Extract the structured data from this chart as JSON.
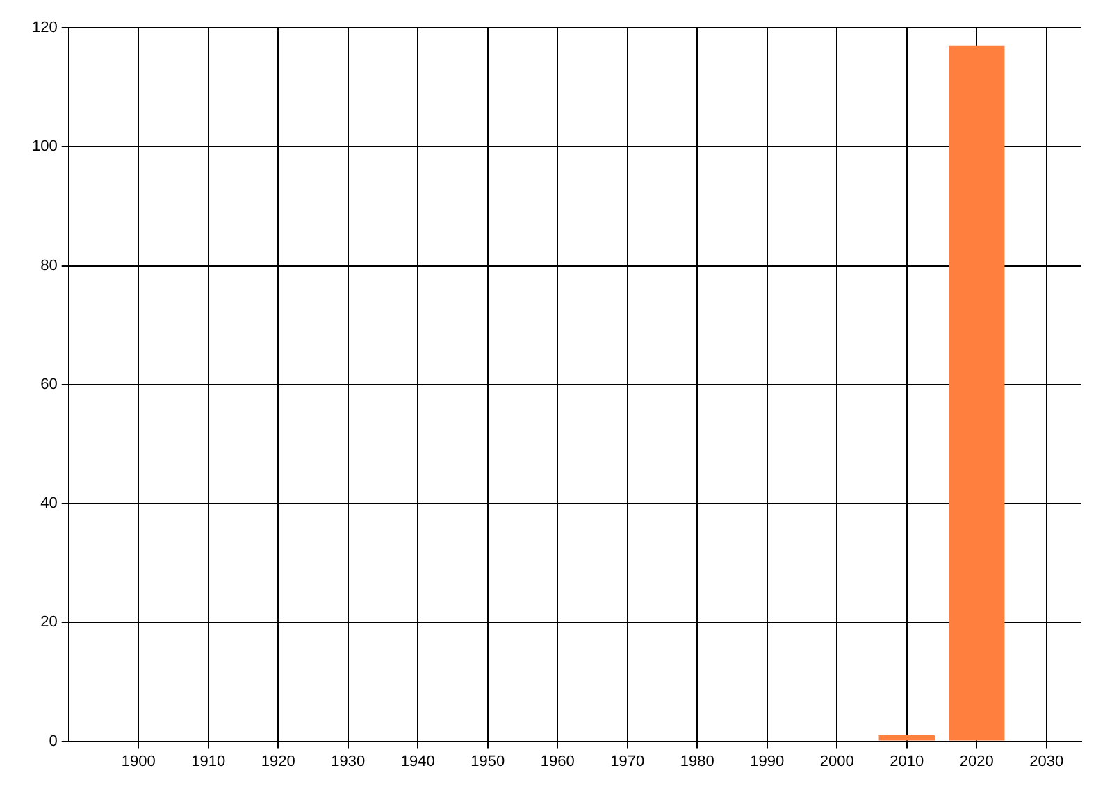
{
  "chart_data": {
    "type": "bar",
    "x": [
      2010,
      2020
    ],
    "values": [
      1,
      117
    ],
    "color": "#ff7f3f",
    "xlim": [
      1890,
      2035
    ],
    "xticks": [
      1900,
      1910,
      1920,
      1930,
      1940,
      1950,
      1960,
      1970,
      1980,
      1990,
      2000,
      2010,
      2020,
      2030
    ],
    "ylim": [
      0,
      120
    ],
    "yticks": [
      0,
      20,
      40,
      60,
      80,
      100,
      120
    ],
    "grid": true
  }
}
